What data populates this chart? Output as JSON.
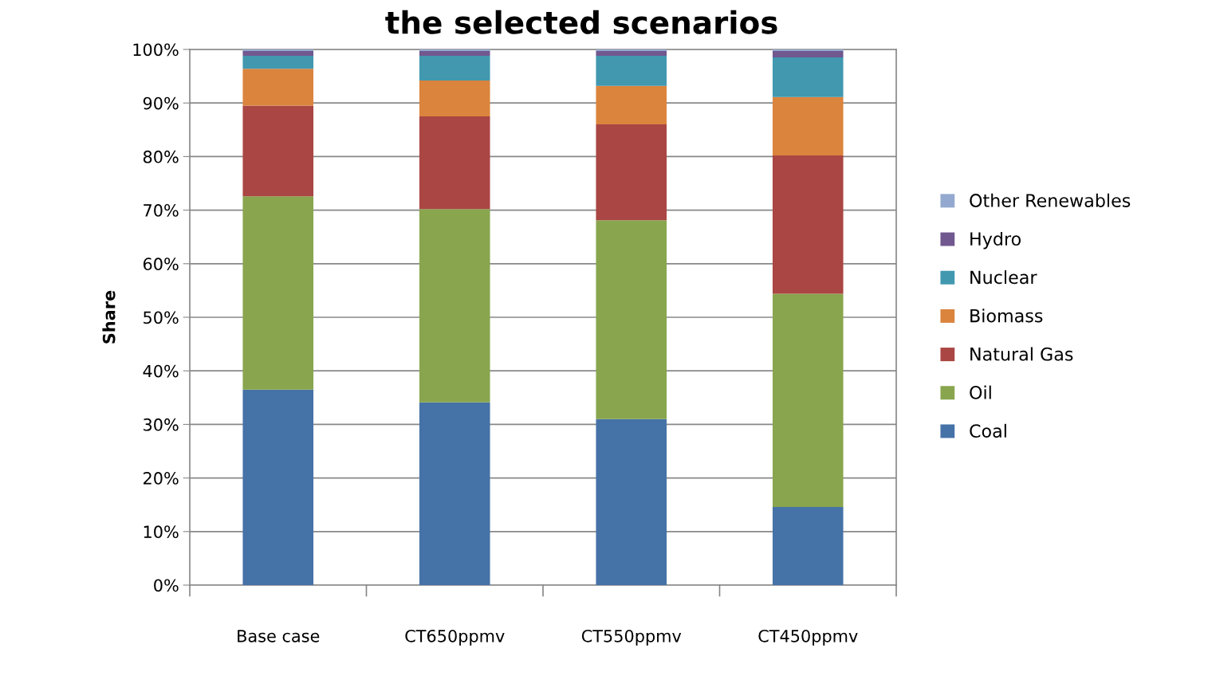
{
  "chart_data": {
    "type": "bar",
    "stacked": true,
    "title": "the selected scenarios",
    "ylabel": "Share",
    "categories": [
      "Base case",
      "CT650ppmv",
      "CT550ppmv",
      "CT450ppmv"
    ],
    "series": [
      {
        "name": "Coal",
        "color": "#4572a7",
        "values": [
          36.5,
          34.1,
          31.0,
          14.6
        ]
      },
      {
        "name": "Oil",
        "color": "#89a54e",
        "values": [
          36.1,
          36.1,
          37.1,
          39.8
        ]
      },
      {
        "name": "Natural Gas",
        "color": "#aa4643",
        "values": [
          16.9,
          17.3,
          17.9,
          25.8
        ]
      },
      {
        "name": "Biomass",
        "color": "#db843d",
        "values": [
          6.9,
          6.7,
          7.2,
          10.9
        ]
      },
      {
        "name": "Nuclear",
        "color": "#4198af",
        "values": [
          2.4,
          4.6,
          5.6,
          7.4
        ]
      },
      {
        "name": "Hydro",
        "color": "#71588f",
        "values": [
          0.9,
          0.9,
          0.9,
          1.2
        ]
      },
      {
        "name": "Other Renewables",
        "color": "#93a9cf",
        "values": [
          0.3,
          0.3,
          0.3,
          0.3
        ]
      }
    ],
    "ylim": [
      0,
      100
    ],
    "yticks": [
      {
        "value": 0,
        "label": "0%"
      },
      {
        "value": 10,
        "label": "10%"
      },
      {
        "value": 20,
        "label": "20%"
      },
      {
        "value": 30,
        "label": "30%"
      },
      {
        "value": 40,
        "label": "40%"
      },
      {
        "value": 50,
        "label": "50%"
      },
      {
        "value": 60,
        "label": "60%"
      },
      {
        "value": 70,
        "label": "70%"
      },
      {
        "value": 80,
        "label": "80%"
      },
      {
        "value": 90,
        "label": "90%"
      },
      {
        "value": 100,
        "label": "100%"
      }
    ],
    "grid": "y",
    "legend": "right"
  }
}
